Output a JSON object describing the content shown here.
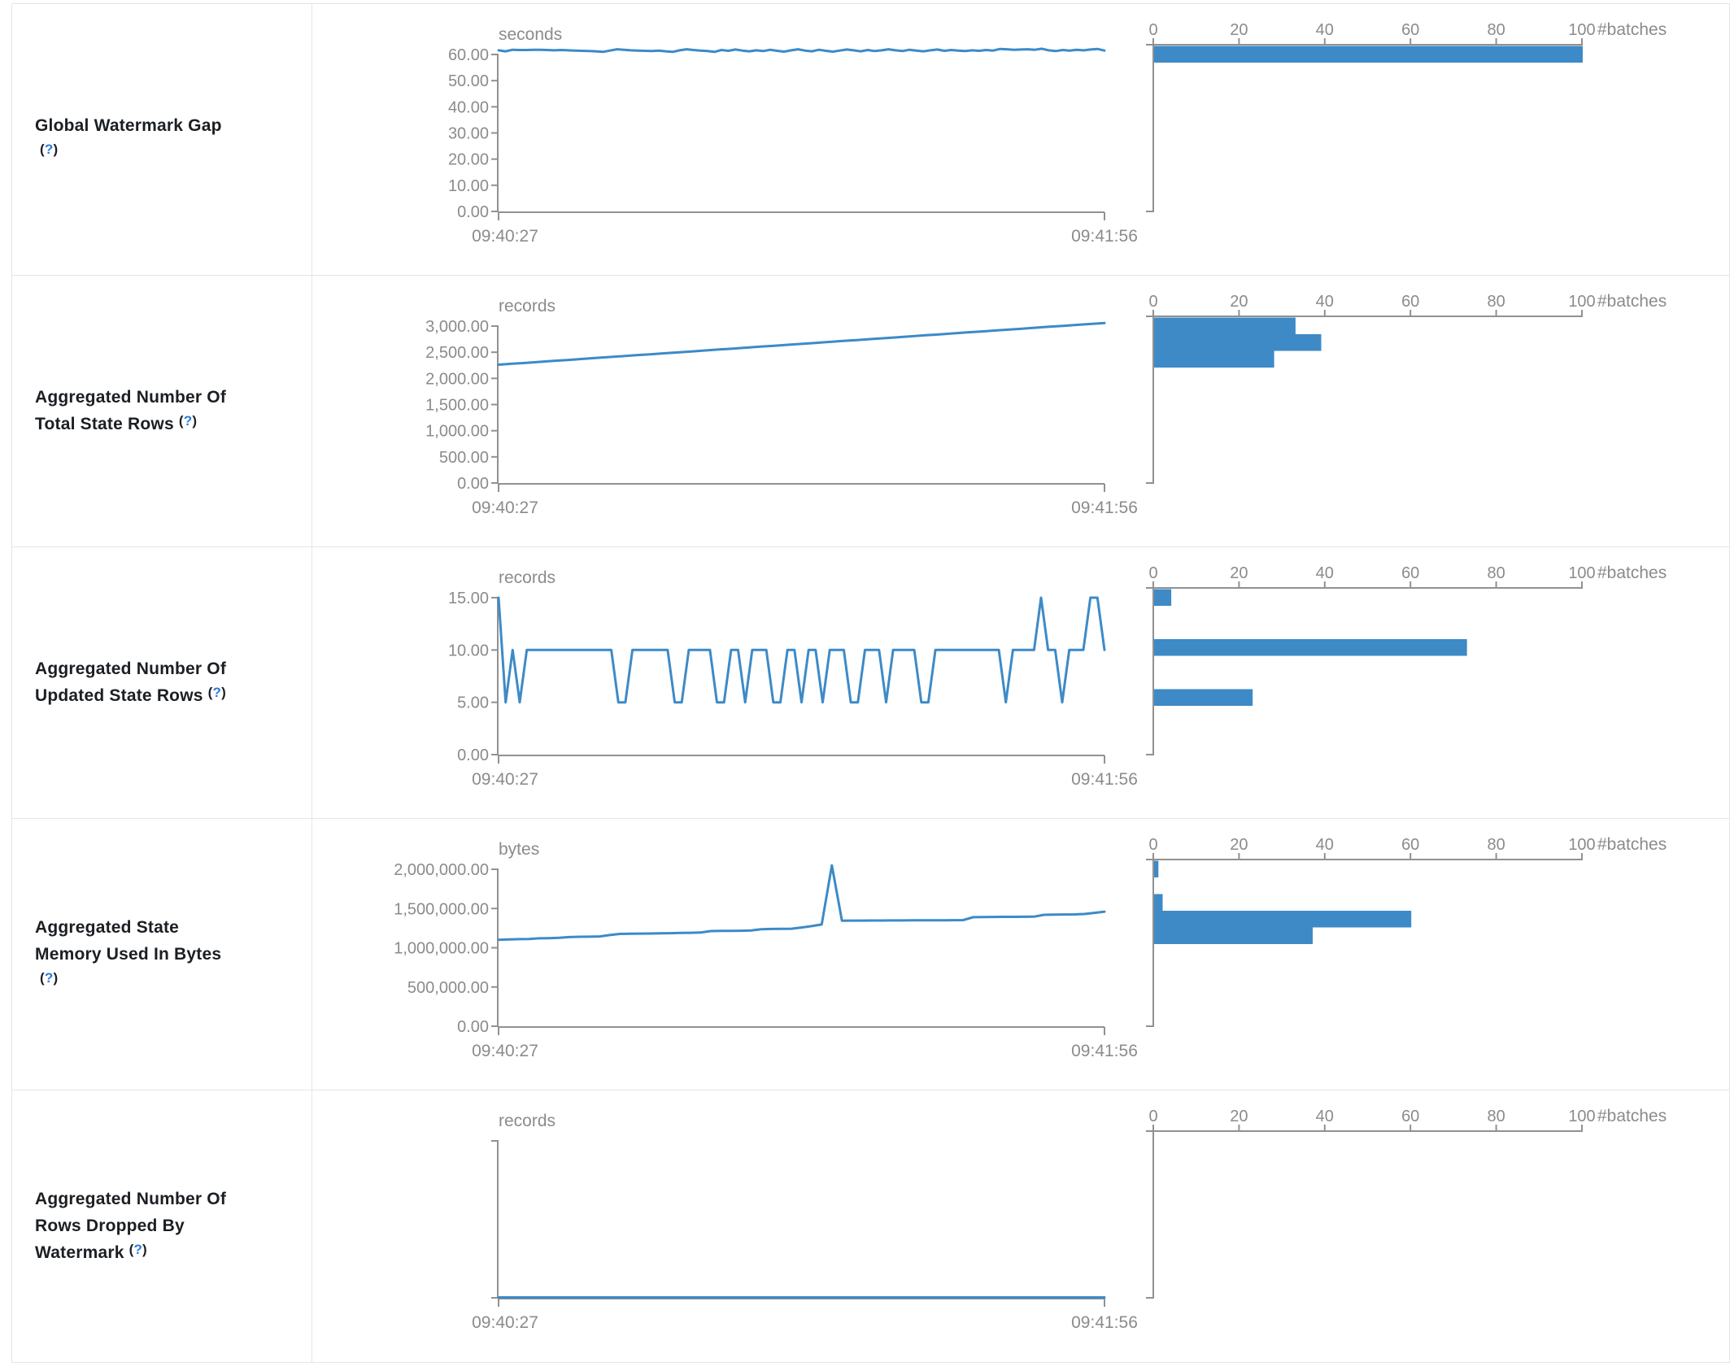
{
  "colors": {
    "accent": "#3d8ac7",
    "axis": "#919191",
    "tick_text": "#8b8b8b",
    "label_text": "#1b1f23",
    "help_blue": "#2e7bd8",
    "border": "#e2e6ea"
  },
  "table": {
    "help_label": "(?)",
    "rows": [
      {
        "label": "Global Watermark Gap",
        "label_lines": [
          "Global Watermark Gap",
          ""
        ],
        "help_line": 1
      },
      {
        "label": "Aggregated Number Of Total State Rows",
        "label_lines": [
          "Aggregated Number Of",
          "Total State Rows"
        ],
        "help_line": 1
      },
      {
        "label": "Aggregated Number Of Updated State Rows",
        "label_lines": [
          "Aggregated Number Of",
          "Updated State Rows"
        ],
        "help_line": 1
      },
      {
        "label": "Aggregated State Memory Used In Bytes",
        "label_lines": [
          "Aggregated State",
          "Memory Used In Bytes",
          ""
        ],
        "help_line": 2
      },
      {
        "label": "Aggregated Number Of Rows Dropped By Watermark",
        "label_lines": [
          "Aggregated Number Of",
          "Rows Dropped By",
          "Watermark"
        ],
        "help_line": 2
      }
    ]
  },
  "chart_data": [
    {
      "row_label": "Global Watermark Gap",
      "timeline": {
        "type": "line",
        "title": "seconds",
        "x_start": "09:40:27",
        "x_end": "09:41:56",
        "ylim": [
          0,
          60
        ],
        "yticks": [
          "60.00",
          "50.00",
          "40.00",
          "30.00",
          "20.00",
          "10.00",
          "0.00"
        ],
        "values": [
          61.6,
          61.2,
          61.8,
          61.7,
          61.7,
          61.8,
          61.8,
          61.7,
          61.6,
          61.7,
          61.6,
          61.5,
          61.4,
          61.3,
          61.2,
          61.0,
          61.5,
          62.0,
          61.8,
          61.6,
          61.5,
          61.4,
          61.3,
          61.5,
          61.2,
          61.0,
          61.6,
          62.0,
          61.7,
          61.5,
          61.3,
          61.0,
          61.7,
          61.4,
          61.9,
          61.5,
          61.2,
          61.6,
          61.3,
          61.8,
          61.4,
          61.1,
          61.6,
          62.0,
          61.5,
          61.2,
          61.8,
          61.4,
          61.1,
          61.5,
          61.9,
          61.6,
          61.2,
          61.7,
          61.3,
          61.6,
          62.0,
          61.6,
          61.3,
          61.8,
          61.5,
          61.2,
          61.6,
          61.9,
          61.4,
          61.7,
          61.5,
          61.3,
          61.6,
          61.4,
          61.7,
          61.5,
          62.1,
          62.0,
          61.8,
          61.9,
          62.0,
          61.8,
          62.2,
          61.6,
          61.3,
          61.7,
          61.5,
          61.8,
          61.6,
          61.9,
          62.1,
          61.5
        ]
      },
      "histogram": {
        "type": "bar",
        "orientation": "horizontal",
        "xlabel": "#batches",
        "xticks": [
          "0",
          "20",
          "40",
          "60",
          "80",
          "100"
        ],
        "xlim": [
          0,
          100
        ],
        "bins": [
          100
        ]
      }
    },
    {
      "row_label": "Aggregated Number Of Total State Rows",
      "timeline": {
        "type": "line",
        "title": "records",
        "x_start": "09:40:27",
        "x_end": "09:41:56",
        "ylim": [
          0,
          3000
        ],
        "yticks": [
          "3,000.00",
          "2,500.00",
          "2,000.00",
          "1,500.00",
          "1,000.00",
          "500.00",
          "0.00"
        ],
        "values": [
          2262,
          2280,
          2298,
          2316,
          2334,
          2352,
          2370,
          2389,
          2407,
          2425,
          2443,
          2461,
          2479,
          2497,
          2515,
          2534,
          2552,
          2570,
          2588,
          2606,
          2624,
          2642,
          2660,
          2679,
          2697,
          2715,
          2733,
          2751,
          2769,
          2787,
          2805,
          2824,
          2842,
          2860,
          2878,
          2896,
          2914,
          2932,
          2950,
          2969,
          2987,
          3005,
          3023,
          3041,
          3058
        ]
      },
      "histogram": {
        "type": "bar",
        "orientation": "horizontal",
        "xlabel": "#batches",
        "xticks": [
          "0",
          "20",
          "40",
          "60",
          "80",
          "100"
        ],
        "xlim": [
          0,
          100
        ],
        "bins": [
          33,
          39,
          28
        ]
      }
    },
    {
      "row_label": "Aggregated Number Of Updated State Rows",
      "timeline": {
        "type": "line",
        "title": "records",
        "x_start": "09:40:27",
        "x_end": "09:41:56",
        "ylim": [
          0,
          15
        ],
        "yticks": [
          "15.00",
          "10.00",
          "5.00",
          "0.00"
        ],
        "values": [
          15,
          5,
          10,
          5,
          10,
          10,
          10,
          10,
          10,
          10,
          10,
          10,
          10,
          10,
          10,
          10,
          10,
          5,
          5,
          10,
          10,
          10,
          10,
          10,
          10,
          5,
          5,
          10,
          10,
          10,
          10,
          5,
          5,
          10,
          10,
          5,
          10,
          10,
          10,
          5,
          5,
          10,
          10,
          5,
          10,
          10,
          5,
          10,
          10,
          10,
          5,
          5,
          10,
          10,
          10,
          5,
          10,
          10,
          10,
          10,
          5,
          5,
          10,
          10,
          10,
          10,
          10,
          10,
          10,
          10,
          10,
          10,
          5,
          10,
          10,
          10,
          10,
          15,
          10,
          10,
          5,
          10,
          10,
          10,
          15,
          15,
          10
        ]
      },
      "histogram": {
        "type": "bar",
        "orientation": "horizontal",
        "xlabel": "#batches",
        "xticks": [
          "0",
          "20",
          "40",
          "60",
          "80",
          "100"
        ],
        "xlim": [
          0,
          100
        ],
        "bins": [
          4,
          0,
          0,
          73,
          0,
          0,
          23
        ]
      }
    },
    {
      "row_label": "Aggregated State Memory Used In Bytes",
      "timeline": {
        "type": "line",
        "title": "bytes",
        "x_start": "09:40:27",
        "x_end": "09:41:56",
        "ylim": [
          0,
          2000000
        ],
        "yticks": [
          "2,000,000.00",
          "1,500,000.00",
          "1,000,000.00",
          "500,000.00",
          "0.00"
        ],
        "values": [
          1100000,
          1106000,
          1110000,
          1112000,
          1120000,
          1122000,
          1126000,
          1136000,
          1140000,
          1141000,
          1144000,
          1162000,
          1176000,
          1179000,
          1180000,
          1181000,
          1183000,
          1186000,
          1189000,
          1191000,
          1194000,
          1212000,
          1214000,
          1216000,
          1217000,
          1220000,
          1236000,
          1239000,
          1241000,
          1242000,
          1258000,
          1276000,
          1296000,
          2050000,
          1345000,
          1346000,
          1346000,
          1347000,
          1347000,
          1348000,
          1348000,
          1349000,
          1349000,
          1350000,
          1350000,
          1351000,
          1352000,
          1390000,
          1392000,
          1393000,
          1394000,
          1394000,
          1395000,
          1396000,
          1420000,
          1422000,
          1424000,
          1425000,
          1430000,
          1445000,
          1460000
        ]
      },
      "histogram": {
        "type": "bar",
        "orientation": "horizontal",
        "xlabel": "#batches",
        "xticks": [
          "0",
          "20",
          "40",
          "60",
          "80",
          "100"
        ],
        "xlim": [
          0,
          100
        ],
        "bins": [
          1,
          0,
          2,
          60,
          37
        ]
      }
    },
    {
      "row_label": "Aggregated Number Of Rows Dropped By Watermark",
      "timeline": {
        "type": "line",
        "title": "records",
        "x_start": "09:40:27",
        "x_end": "09:41:56",
        "ylim": [
          0,
          1
        ],
        "yticks": [],
        "values": [
          0,
          0,
          0,
          0,
          0,
          0,
          0,
          0,
          0,
          0,
          0,
          0,
          0,
          0,
          0,
          0,
          0,
          0,
          0,
          0,
          0,
          0,
          0,
          0,
          0,
          0,
          0,
          0,
          0,
          0
        ]
      },
      "histogram": {
        "type": "bar",
        "orientation": "horizontal",
        "xlabel": "#batches",
        "xticks": [
          "0",
          "20",
          "40",
          "60",
          "80",
          "100"
        ],
        "xlim": [
          0,
          100
        ],
        "bins": []
      }
    }
  ]
}
